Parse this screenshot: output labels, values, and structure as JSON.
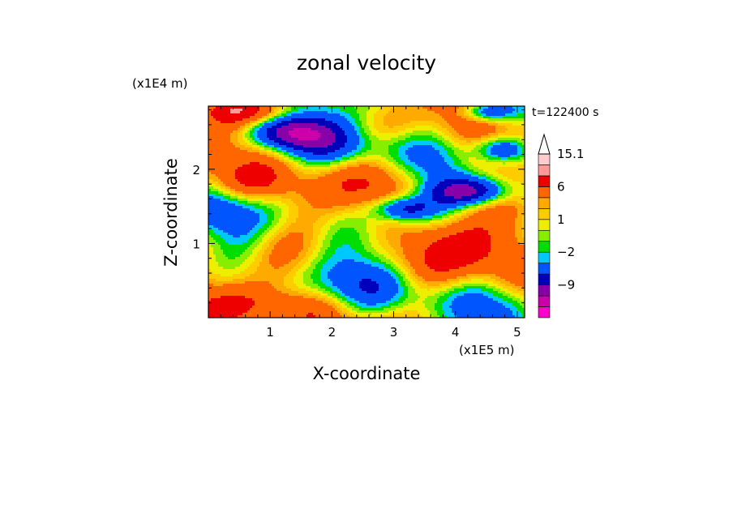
{
  "chart_data": {
    "type": "heatmap",
    "title": "zonal velocity",
    "xlabel": "X-coordinate",
    "ylabel": "Z-coordinate",
    "x_unit": "(x1E5 m)",
    "y_unit": "(x1E4 m)",
    "time_label": "t=122400 s",
    "xlim": [
      0,
      5.12
    ],
    "ylim": [
      0,
      2.85
    ],
    "x_ticks": [
      1,
      2,
      3,
      4,
      5
    ],
    "y_ticks": [
      1,
      2
    ],
    "colorbar": {
      "labels": [
        "15.1",
        "6",
        "1",
        "−2",
        "−9"
      ],
      "label_values": [
        15.1,
        6,
        1,
        -2,
        -9
      ],
      "levels": [
        -15,
        -12,
        -9,
        -6,
        -3,
        -2,
        -1,
        0,
        1,
        2,
        3,
        6,
        9,
        12,
        15.1
      ],
      "colors": [
        "#ff00cc",
        "#cc00aa",
        "#8800aa",
        "#0000bb",
        "#0055ff",
        "#00c8ff",
        "#00dd00",
        "#88ee00",
        "#eeee00",
        "#ffcc00",
        "#ffaa00",
        "#ff6600",
        "#ee0000",
        "#ff9999",
        "#ffcccc"
      ],
      "extend_max": true
    }
  }
}
